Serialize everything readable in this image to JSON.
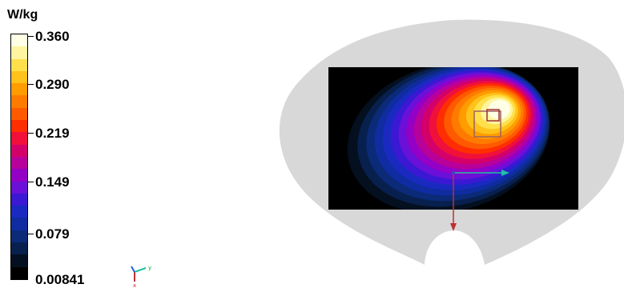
{
  "legend": {
    "unit": "W/kg",
    "ticks": [
      "0.360",
      "0.290",
      "0.219",
      "0.149",
      "0.079",
      "0.00841"
    ],
    "colors_top_to_bottom": [
      "#ffffe6",
      "#fff4a0",
      "#ffe04a",
      "#ffc21a",
      "#ff9c00",
      "#ff7b00",
      "#ff5a00",
      "#ff2e00",
      "#f0103a",
      "#d4006a",
      "#b8009a",
      "#9400c6",
      "#6a10d8",
      "#3a18d4",
      "#1a2ac0",
      "#0f2ca0",
      "#0b2a78",
      "#08204e",
      "#041020",
      "#000000"
    ]
  },
  "scene": {
    "phantom_color": "#d8d8d8",
    "field_background": "#000000",
    "axis_colors": {
      "y": "#20c0a0",
      "x": "#c03030"
    }
  },
  "mini_axes": {
    "y_label": "y",
    "x_label": "x"
  }
}
